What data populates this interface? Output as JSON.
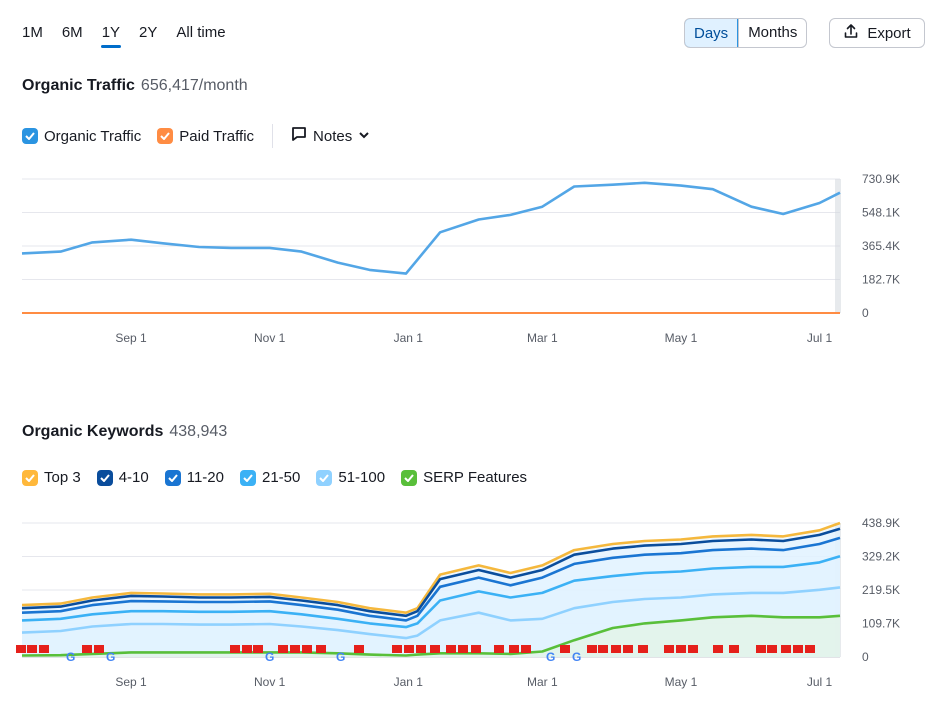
{
  "period_tabs": [
    "1M",
    "6M",
    "1Y",
    "2Y",
    "All time"
  ],
  "active_period": "1Y",
  "view_toggle": {
    "days": "Days",
    "months": "Months",
    "active": "Days"
  },
  "export_label": "Export",
  "traffic": {
    "title": "Organic Traffic",
    "value": "656,417/month",
    "legend": [
      {
        "label": "Organic Traffic",
        "color": "#2b94e1",
        "checked": true
      },
      {
        "label": "Paid Traffic",
        "color": "#ff8c43",
        "checked": true
      }
    ],
    "notes_label": "Notes"
  },
  "keywords": {
    "title": "Organic Keywords",
    "value": "438,943",
    "legend": [
      {
        "label": "Top 3",
        "color": "#ffb83b",
        "checked": true
      },
      {
        "label": "4-10",
        "color": "#0a4d9c",
        "checked": true
      },
      {
        "label": "11-20",
        "color": "#1a75d2",
        "checked": true
      },
      {
        "label": "21-50",
        "color": "#3bb1f5",
        "checked": true
      },
      {
        "label": "51-100",
        "color": "#8fd1ff",
        "checked": true
      },
      {
        "label": "SERP Features",
        "color": "#59bf3a",
        "checked": true
      }
    ]
  },
  "chart_data": [
    {
      "type": "line",
      "x_tick_labels": [
        "Sep 1",
        "Nov 1",
        "Jan 1",
        "Mar 1",
        "May 1",
        "Jul 1"
      ],
      "y_tick_labels": [
        "0",
        "182.7K",
        "365.4K",
        "548.1K",
        "730.9K"
      ],
      "ylim": [
        0,
        730900
      ],
      "grid": true,
      "x": [
        "Jul 15",
        "Aug 1",
        "Aug 15",
        "Sep 1",
        "Sep 15",
        "Oct 1",
        "Oct 15",
        "Nov 1",
        "Nov 15",
        "Dec 1",
        "Dec 15",
        "Dec 31",
        "Jan 5",
        "Jan 15",
        "Feb 1",
        "Feb 15",
        "Mar 1",
        "Mar 15",
        "Apr 1",
        "Apr 15",
        "May 1",
        "May 15",
        "Jun 1",
        "Jun 15",
        "Jul 1",
        "Jul 10"
      ],
      "series": [
        {
          "name": "Organic Traffic",
          "color": "#53a6e6",
          "values": [
            325000,
            335000,
            385000,
            400000,
            380000,
            360000,
            355000,
            355000,
            335000,
            275000,
            235000,
            215000,
            290000,
            440000,
            510000,
            535000,
            580000,
            690000,
            700000,
            710000,
            695000,
            675000,
            580000,
            540000,
            600000,
            656000
          ]
        },
        {
          "name": "Paid Traffic",
          "color": "#ff8c43",
          "values": [
            0,
            0,
            0,
            0,
            0,
            0,
            0,
            0,
            0,
            0,
            0,
            0,
            0,
            0,
            0,
            0,
            0,
            0,
            0,
            0,
            0,
            0,
            0,
            0,
            0,
            0
          ]
        }
      ]
    },
    {
      "type": "area",
      "x_tick_labels": [
        "Sep 1",
        "Nov 1",
        "Jan 1",
        "Mar 1",
        "May 1",
        "Jul 1"
      ],
      "y_tick_labels": [
        "0",
        "109.7K",
        "219.5K",
        "329.2K",
        "438.9K"
      ],
      "ylim": [
        0,
        438900
      ],
      "grid": true,
      "x": [
        "Jul 15",
        "Aug 1",
        "Aug 15",
        "Sep 1",
        "Sep 15",
        "Oct 1",
        "Oct 15",
        "Nov 1",
        "Nov 15",
        "Dec 1",
        "Dec 15",
        "Dec 31",
        "Jan 5",
        "Jan 15",
        "Feb 1",
        "Feb 15",
        "Mar 1",
        "Mar 15",
        "Apr 1",
        "Apr 15",
        "May 1",
        "May 15",
        "Jun 1",
        "Jun 15",
        "Jul 1",
        "Jul 10"
      ],
      "series": [
        {
          "name": "Top 3",
          "color": "#f5b83d",
          "values": [
            170000,
            175000,
            195000,
            210000,
            208000,
            205000,
            205000,
            207000,
            195000,
            180000,
            160000,
            145000,
            160000,
            270000,
            300000,
            275000,
            300000,
            350000,
            370000,
            380000,
            385000,
            395000,
            400000,
            395000,
            415000,
            438943
          ]
        },
        {
          "name": "4-10",
          "color": "#0a4d9c",
          "values": [
            160000,
            165000,
            185000,
            200000,
            198000,
            195000,
            195000,
            197000,
            185000,
            170000,
            150000,
            135000,
            150000,
            255000,
            285000,
            260000,
            285000,
            335000,
            355000,
            365000,
            370000,
            380000,
            385000,
            380000,
            400000,
            420000
          ]
        },
        {
          "name": "11-20",
          "color": "#1a75d2",
          "values": [
            145000,
            150000,
            170000,
            183000,
            182000,
            180000,
            180000,
            182000,
            170000,
            155000,
            135000,
            120000,
            135000,
            230000,
            260000,
            235000,
            260000,
            305000,
            325000,
            335000,
            340000,
            350000,
            355000,
            350000,
            370000,
            390000
          ]
        },
        {
          "name": "21-50",
          "color": "#3bb1f5",
          "values": [
            120000,
            125000,
            140000,
            150000,
            150000,
            148000,
            148000,
            150000,
            140000,
            125000,
            110000,
            98000,
            110000,
            185000,
            215000,
            195000,
            210000,
            250000,
            265000,
            275000,
            280000,
            290000,
            295000,
            295000,
            310000,
            330000
          ]
        },
        {
          "name": "51-100",
          "color": "#8fd1ff",
          "values": [
            80000,
            85000,
            100000,
            108000,
            108000,
            106000,
            106000,
            108000,
            100000,
            88000,
            75000,
            62000,
            70000,
            120000,
            145000,
            120000,
            125000,
            160000,
            180000,
            190000,
            195000,
            205000,
            210000,
            210000,
            220000,
            228000
          ]
        },
        {
          "name": "SERP Features",
          "color": "#59bf3a",
          "values": [
            5000,
            6000,
            10000,
            15000,
            15000,
            15000,
            15000,
            15000,
            15000,
            12000,
            8000,
            5000,
            8000,
            12000,
            12000,
            10000,
            18000,
            55000,
            95000,
            110000,
            120000,
            130000,
            135000,
            130000,
            130000,
            135000
          ]
        }
      ]
    }
  ]
}
